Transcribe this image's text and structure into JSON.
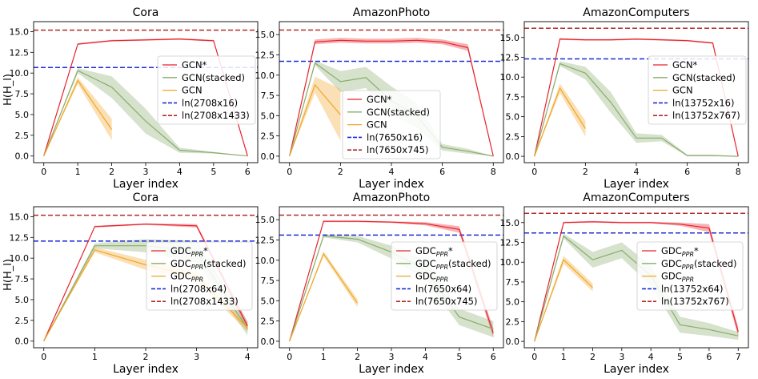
{
  "figure": {
    "ylabel_rows": [
      "H(H_l)",
      "H(H_l)"
    ]
  },
  "chart_data": [
    {
      "type": "line",
      "title": "Cora",
      "xlabel": "Layer index",
      "ylabel": "H(H_l)",
      "xlim": [
        -0.3,
        6.3
      ],
      "ylim": [
        -0.8,
        16.2
      ],
      "xticks": [
        0,
        1,
        2,
        3,
        4,
        5,
        6
      ],
      "yticks": [
        0.0,
        2.5,
        5.0,
        7.5,
        10.0,
        12.5,
        15.0
      ],
      "series": [
        {
          "name": "GCN*",
          "color": "#e8212b",
          "x": [
            0,
            1,
            2,
            3,
            4,
            5,
            6
          ],
          "y": [
            0,
            13.5,
            13.9,
            14.0,
            14.1,
            13.9,
            0
          ],
          "band": [
            0.1,
            0.1,
            0.1,
            0.1,
            0.1,
            0.1,
            0.1
          ]
        },
        {
          "name": "GCN(stacked)",
          "color": "#8aac6e",
          "x": [
            0,
            1,
            2,
            3,
            4,
            5,
            6
          ],
          "y": [
            0,
            10.3,
            8.3,
            4.2,
            0.7,
            0.4,
            0
          ],
          "band": [
            0,
            0.3,
            1.3,
            1.5,
            0.3,
            0.1,
            0
          ]
        },
        {
          "name": "GCN",
          "color": "#f0a628",
          "x": [
            0,
            1,
            2
          ],
          "y": [
            0,
            9.1,
            3.2
          ],
          "band": [
            0,
            0.4,
            1.3
          ]
        }
      ],
      "hlines": [
        {
          "name": "ln(2708x16)",
          "color": "#1f2bd6",
          "y": 10.67
        },
        {
          "name": "ln(2708x1433)",
          "color": "#b22a2a",
          "y": 15.17
        }
      ],
      "legend": {
        "labels": [
          "GCN*",
          "GCN(stacked)",
          "GCN",
          "ln(2708x16)",
          "ln(2708x1433)"
        ],
        "location": "center-right"
      }
    },
    {
      "type": "line",
      "title": "AmazonPhoto",
      "xlabel": "Layer index",
      "ylabel": "H(H_l)",
      "xlim": [
        -0.4,
        8.4
      ],
      "ylim": [
        -0.8,
        16.6
      ],
      "xticks": [
        0,
        2,
        4,
        6,
        8
      ],
      "yticks": [
        0.0,
        2.5,
        5.0,
        7.5,
        10.0,
        12.5,
        15.0
      ],
      "series": [
        {
          "name": "GCN*",
          "color": "#e8212b",
          "x": [
            0,
            1,
            2,
            3,
            4,
            5,
            6,
            7,
            8
          ],
          "y": [
            0,
            14.1,
            14.3,
            14.2,
            14.2,
            14.3,
            14.1,
            13.4,
            0
          ],
          "band": [
            0,
            0.3,
            0.3,
            0.3,
            0.3,
            0.3,
            0.3,
            0.4,
            0
          ]
        },
        {
          "name": "GCN(stacked)",
          "color": "#8aac6e",
          "x": [
            0,
            1,
            2,
            3,
            4,
            5,
            6,
            7,
            8
          ],
          "y": [
            0,
            11.5,
            9.2,
            9.7,
            6.8,
            5.0,
            1.1,
            0.6,
            0
          ],
          "band": [
            0,
            0.3,
            1.3,
            1.3,
            1.8,
            1.5,
            0.4,
            0.3,
            0
          ]
        },
        {
          "name": "GCN",
          "color": "#f0a628",
          "x": [
            0,
            1,
            2
          ],
          "y": [
            0,
            8.8,
            5.1
          ],
          "band": [
            0,
            1.0,
            3.2
          ]
        }
      ],
      "hlines": [
        {
          "name": "ln(7650x16)",
          "color": "#1f2bd6",
          "y": 11.71
        },
        {
          "name": "ln(7650x745)",
          "color": "#b22a2a",
          "y": 15.56
        }
      ],
      "legend": {
        "labels": [
          "GCN*",
          "GCN(stacked)",
          "GCN",
          "ln(7650x16)",
          "ln(7650x745)"
        ],
        "location": "bottom-center"
      }
    },
    {
      "type": "line",
      "title": "AmazonComputers",
      "xlabel": "Layer index",
      "ylabel": "H(H_l)",
      "xlim": [
        -0.4,
        8.4
      ],
      "ylim": [
        -0.8,
        17.0
      ],
      "xticks": [
        0,
        2,
        4,
        6,
        8
      ],
      "yticks": [
        0.0,
        2.5,
        5.0,
        7.5,
        10.0,
        12.5,
        15.0
      ],
      "series": [
        {
          "name": "GCN*",
          "color": "#e8212b",
          "x": [
            0,
            1,
            2,
            3,
            4,
            5,
            6,
            7,
            8
          ],
          "y": [
            0,
            14.8,
            14.7,
            14.7,
            14.8,
            14.7,
            14.6,
            14.3,
            0
          ],
          "band": [
            0.1,
            0.1,
            0.1,
            0.1,
            0.1,
            0.1,
            0.1,
            0.1,
            0.1
          ]
        },
        {
          "name": "GCN(stacked)",
          "color": "#8aac6e",
          "x": [
            0,
            1,
            2,
            3,
            4,
            5,
            6,
            7,
            8
          ],
          "y": [
            0,
            11.7,
            10.5,
            6.8,
            2.3,
            2.3,
            0.1,
            0.1,
            0
          ],
          "band": [
            0,
            0.3,
            0.8,
            1.3,
            0.6,
            0.4,
            0.1,
            0.1,
            0
          ]
        },
        {
          "name": "GCN",
          "color": "#f0a628",
          "x": [
            0,
            1,
            2
          ],
          "y": [
            0,
            8.6,
            3.5
          ],
          "band": [
            0,
            0.6,
            1.0
          ]
        }
      ],
      "hlines": [
        {
          "name": "ln(13752x16)",
          "color": "#1f2bd6",
          "y": 12.3
        },
        {
          "name": "ln(13752x767)",
          "color": "#b22a2a",
          "y": 16.17
        }
      ],
      "legend": {
        "labels": [
          "GCN*",
          "GCN(stacked)",
          "GCN",
          "ln(13752x16)",
          "ln(13752x767)"
        ],
        "location": "center-right"
      }
    },
    {
      "type": "line",
      "title": "Cora",
      "xlabel": "Layer index",
      "ylabel": "H(H_l)",
      "xlim": [
        -0.2,
        4.2
      ],
      "ylim": [
        -0.8,
        16.2
      ],
      "xticks": [
        0,
        1,
        2,
        3,
        4
      ],
      "yticks": [
        0.0,
        2.5,
        5.0,
        7.5,
        10.0,
        12.5,
        15.0
      ],
      "series": [
        {
          "name": "GDC_PPR*",
          "color": "#e8212b",
          "x": [
            0,
            1,
            2,
            3,
            4
          ],
          "y": [
            0,
            13.8,
            14.1,
            13.9,
            1.8
          ],
          "band": [
            0,
            0.1,
            0.1,
            0.2,
            0.5
          ]
        },
        {
          "name": "GDC_PPR(stacked)",
          "color": "#8aac6e",
          "x": [
            0,
            1,
            2,
            3,
            4
          ],
          "y": [
            0,
            11.5,
            11.5,
            10.8,
            1.5
          ],
          "band": [
            0,
            0.3,
            0.8,
            1.3,
            0.8
          ]
        },
        {
          "name": "GDC_PPR",
          "color": "#f0a628",
          "x": [
            0,
            1,
            2,
            3,
            4
          ],
          "y": [
            0,
            11.0,
            9.2,
            7.8,
            1.6
          ],
          "band": [
            0,
            0.3,
            0.6,
            0.5,
            0.5
          ]
        }
      ],
      "hlines": [
        {
          "name": "ln(2708x64)",
          "color": "#1f2bd6",
          "y": 12.06
        },
        {
          "name": "ln(2708x1433)",
          "color": "#b22a2a",
          "y": 15.17
        }
      ],
      "legend": {
        "labels": [
          "GDC_PPR*",
          "GDC_PPR(stacked)",
          "GDC_PPR",
          "ln(2708x64)",
          "ln(2708x1433)"
        ],
        "location": "center-right"
      }
    },
    {
      "type": "line",
      "title": "AmazonPhoto",
      "xlabel": "Layer index",
      "ylabel": "H(H_l)",
      "xlim": [
        -0.3,
        6.3
      ],
      "ylim": [
        -0.8,
        16.6
      ],
      "xticks": [
        0,
        1,
        2,
        3,
        4,
        5,
        6
      ],
      "yticks": [
        0.0,
        2.5,
        5.0,
        7.5,
        10.0,
        12.5,
        15.0
      ],
      "series": [
        {
          "name": "GDC_PPR*",
          "color": "#e8212b",
          "x": [
            0,
            1,
            2,
            3,
            4,
            5,
            6
          ],
          "y": [
            0,
            14.8,
            14.8,
            14.7,
            14.5,
            13.8,
            1.0
          ],
          "band": [
            0,
            0.1,
            0.1,
            0.1,
            0.2,
            0.4,
            0.6
          ]
        },
        {
          "name": "GDC_PPR(stacked)",
          "color": "#8aac6e",
          "x": [
            0,
            1,
            2,
            3,
            4,
            5,
            6
          ],
          "y": [
            0,
            13.0,
            12.6,
            11.0,
            8.8,
            3.0,
            1.5
          ],
          "band": [
            0,
            0.2,
            0.4,
            0.8,
            1.2,
            1.0,
            1.0
          ]
        },
        {
          "name": "GDC_PPR",
          "color": "#f0a628",
          "x": [
            0,
            1,
            2
          ],
          "y": [
            0,
            10.8,
            4.7
          ],
          "band": [
            0,
            0.3,
            0.5
          ]
        }
      ],
      "hlines": [
        {
          "name": "ln(7650x64)",
          "color": "#1f2bd6",
          "y": 13.1
        },
        {
          "name": "ln(7650x745)",
          "color": "#b22a2a",
          "y": 15.56
        }
      ],
      "legend": {
        "labels": [
          "GDC_PPR*",
          "GDC_PPR(stacked)",
          "GDC_PPR",
          "ln(7650x64)",
          "ln(7650x745)"
        ],
        "location": "center-right"
      }
    },
    {
      "type": "line",
      "title": "AmazonComputers",
      "xlabel": "Layer index",
      "ylabel": "H(H_l)",
      "xlim": [
        -0.35,
        7.35
      ],
      "ylim": [
        -0.8,
        17.0
      ],
      "xticks": [
        0,
        1,
        2,
        3,
        4,
        5,
        6,
        7
      ],
      "yticks": [
        0.0,
        2.5,
        5.0,
        7.5,
        10.0,
        12.5,
        15.0
      ],
      "series": [
        {
          "name": "GDC_PPR*",
          "color": "#e8212b",
          "x": [
            0,
            1,
            2,
            3,
            4,
            5,
            6,
            7
          ],
          "y": [
            0,
            15.0,
            15.1,
            15.0,
            15.0,
            14.8,
            14.3,
            1.2
          ],
          "band": [
            0,
            0.1,
            0.1,
            0.1,
            0.1,
            0.2,
            0.5,
            0.6
          ]
        },
        {
          "name": "GDC_PPR(stacked)",
          "color": "#8aac6e",
          "x": [
            0,
            1,
            2,
            3,
            4,
            5,
            6,
            7
          ],
          "y": [
            0,
            13.3,
            10.3,
            11.5,
            8.3,
            2.1,
            1.5,
            0.7
          ],
          "band": [
            0,
            0.3,
            1.0,
            1.0,
            1.3,
            1.0,
            0.8,
            0.5
          ]
        },
        {
          "name": "GDC_PPR",
          "color": "#f0a628",
          "x": [
            0,
            1,
            2
          ],
          "y": [
            0,
            10.3,
            6.8
          ],
          "band": [
            0,
            0.5,
            0.5
          ]
        }
      ],
      "hlines": [
        {
          "name": "ln(13752x64)",
          "color": "#1f2bd6",
          "y": 13.69
        },
        {
          "name": "ln(13752x767)",
          "color": "#b22a2a",
          "y": 16.17
        }
      ],
      "legend": {
        "labels": [
          "GDC_PPR*",
          "GDC_PPR(stacked)",
          "GDC_PPR",
          "ln(13752x64)",
          "ln(13752x767)"
        ],
        "location": "center-right"
      }
    }
  ]
}
